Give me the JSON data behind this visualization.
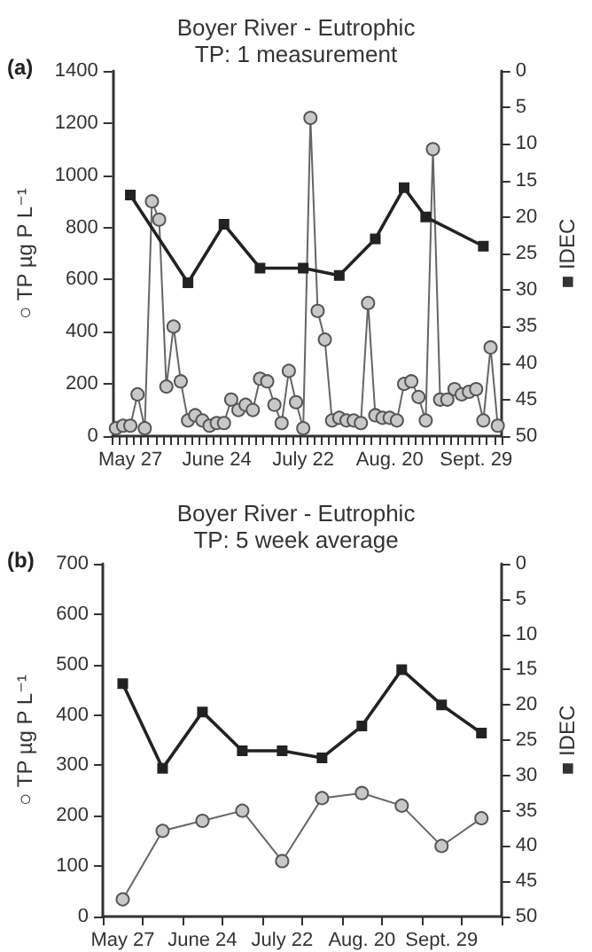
{
  "chart_data": [
    {
      "type": "line",
      "title": "Boyer River - Eutrophic",
      "subtitle": "TP: 1 measurement",
      "annotations": [
        "(a)"
      ],
      "ylabel": "○ TP µg P L⁻¹",
      "y2label": "■ IDEC",
      "categories": [
        null,
        null,
        "May 27",
        null,
        null,
        null,
        null,
        null,
        null,
        null,
        null,
        null,
        null,
        null,
        "June 24",
        null,
        null,
        null,
        null,
        null,
        null,
        null,
        null,
        null,
        null,
        null,
        "July 22",
        null,
        null,
        null,
        null,
        null,
        null,
        null,
        null,
        null,
        null,
        null,
        "Aug. 20",
        null,
        null,
        null,
        null,
        null,
        null,
        null,
        null,
        null,
        null,
        null,
        "Sept. 29",
        null,
        null,
        null
      ],
      "ylim": [
        0,
        1400
      ],
      "yticks": [
        0,
        200,
        400,
        600,
        800,
        1000,
        1200,
        1400
      ],
      "y2lim": [
        50,
        0
      ],
      "y2ticks": [
        50,
        45,
        40,
        35,
        30,
        25,
        20,
        15,
        10,
        5,
        0
      ],
      "grid": false,
      "series": [
        {
          "color": "#c8c8c8",
          "marker": "circle",
          "values": [
            30,
            40,
            40,
            160,
            30,
            900,
            830,
            190,
            420,
            210,
            60,
            80,
            60,
            40,
            50,
            50,
            140,
            100,
            120,
            100,
            220,
            210,
            120,
            50,
            250,
            130,
            30,
            1220,
            480,
            370,
            60,
            70,
            60,
            60,
            50,
            510,
            80,
            70,
            70,
            60,
            200,
            210,
            150,
            60,
            1100,
            140,
            140,
            180,
            160,
            170,
            180,
            60,
            340,
            40
          ]
        },
        {
          "color": "#222222",
          "marker": "square",
          "axis": "y2",
          "values": [
            null,
            null,
            17,
            null,
            null,
            null,
            null,
            null,
            null,
            null,
            29,
            null,
            null,
            null,
            null,
            21,
            null,
            null,
            null,
            null,
            27,
            null,
            null,
            null,
            null,
            null,
            27,
            null,
            null,
            null,
            null,
            28,
            null,
            null,
            null,
            null,
            23,
            null,
            null,
            null,
            16,
            null,
            null,
            20,
            null,
            null,
            null,
            null,
            null,
            null,
            null,
            24,
            null,
            null
          ]
        }
      ]
    },
    {
      "type": "line",
      "title": "Boyer River - Eutrophic",
      "subtitle": "TP: 5 week average",
      "annotations": [
        "(b)"
      ],
      "ylabel": "○ TP µg P L⁻¹",
      "y2label": "■ IDEC",
      "categories": [
        "May 27",
        null,
        "June 24",
        null,
        "July 22",
        null,
        "Aug. 20",
        null,
        "Sept. 29",
        null
      ],
      "ylim": [
        0,
        700
      ],
      "yticks": [
        0,
        100,
        200,
        300,
        400,
        500,
        600,
        700
      ],
      "y2lim": [
        50,
        0
      ],
      "y2ticks": [
        50,
        45,
        40,
        35,
        30,
        25,
        20,
        15,
        10,
        5,
        0
      ],
      "grid": false,
      "series": [
        {
          "color": "#c8c8c8",
          "marker": "circle",
          "values": [
            34,
            170,
            190,
            210,
            110,
            235,
            245,
            220,
            140,
            195
          ]
        },
        {
          "color": "#222222",
          "marker": "square",
          "axis": "y2",
          "values": [
            17,
            29,
            21,
            26.5,
            26.5,
            27.5,
            23,
            15,
            20,
            24
          ]
        }
      ]
    }
  ]
}
